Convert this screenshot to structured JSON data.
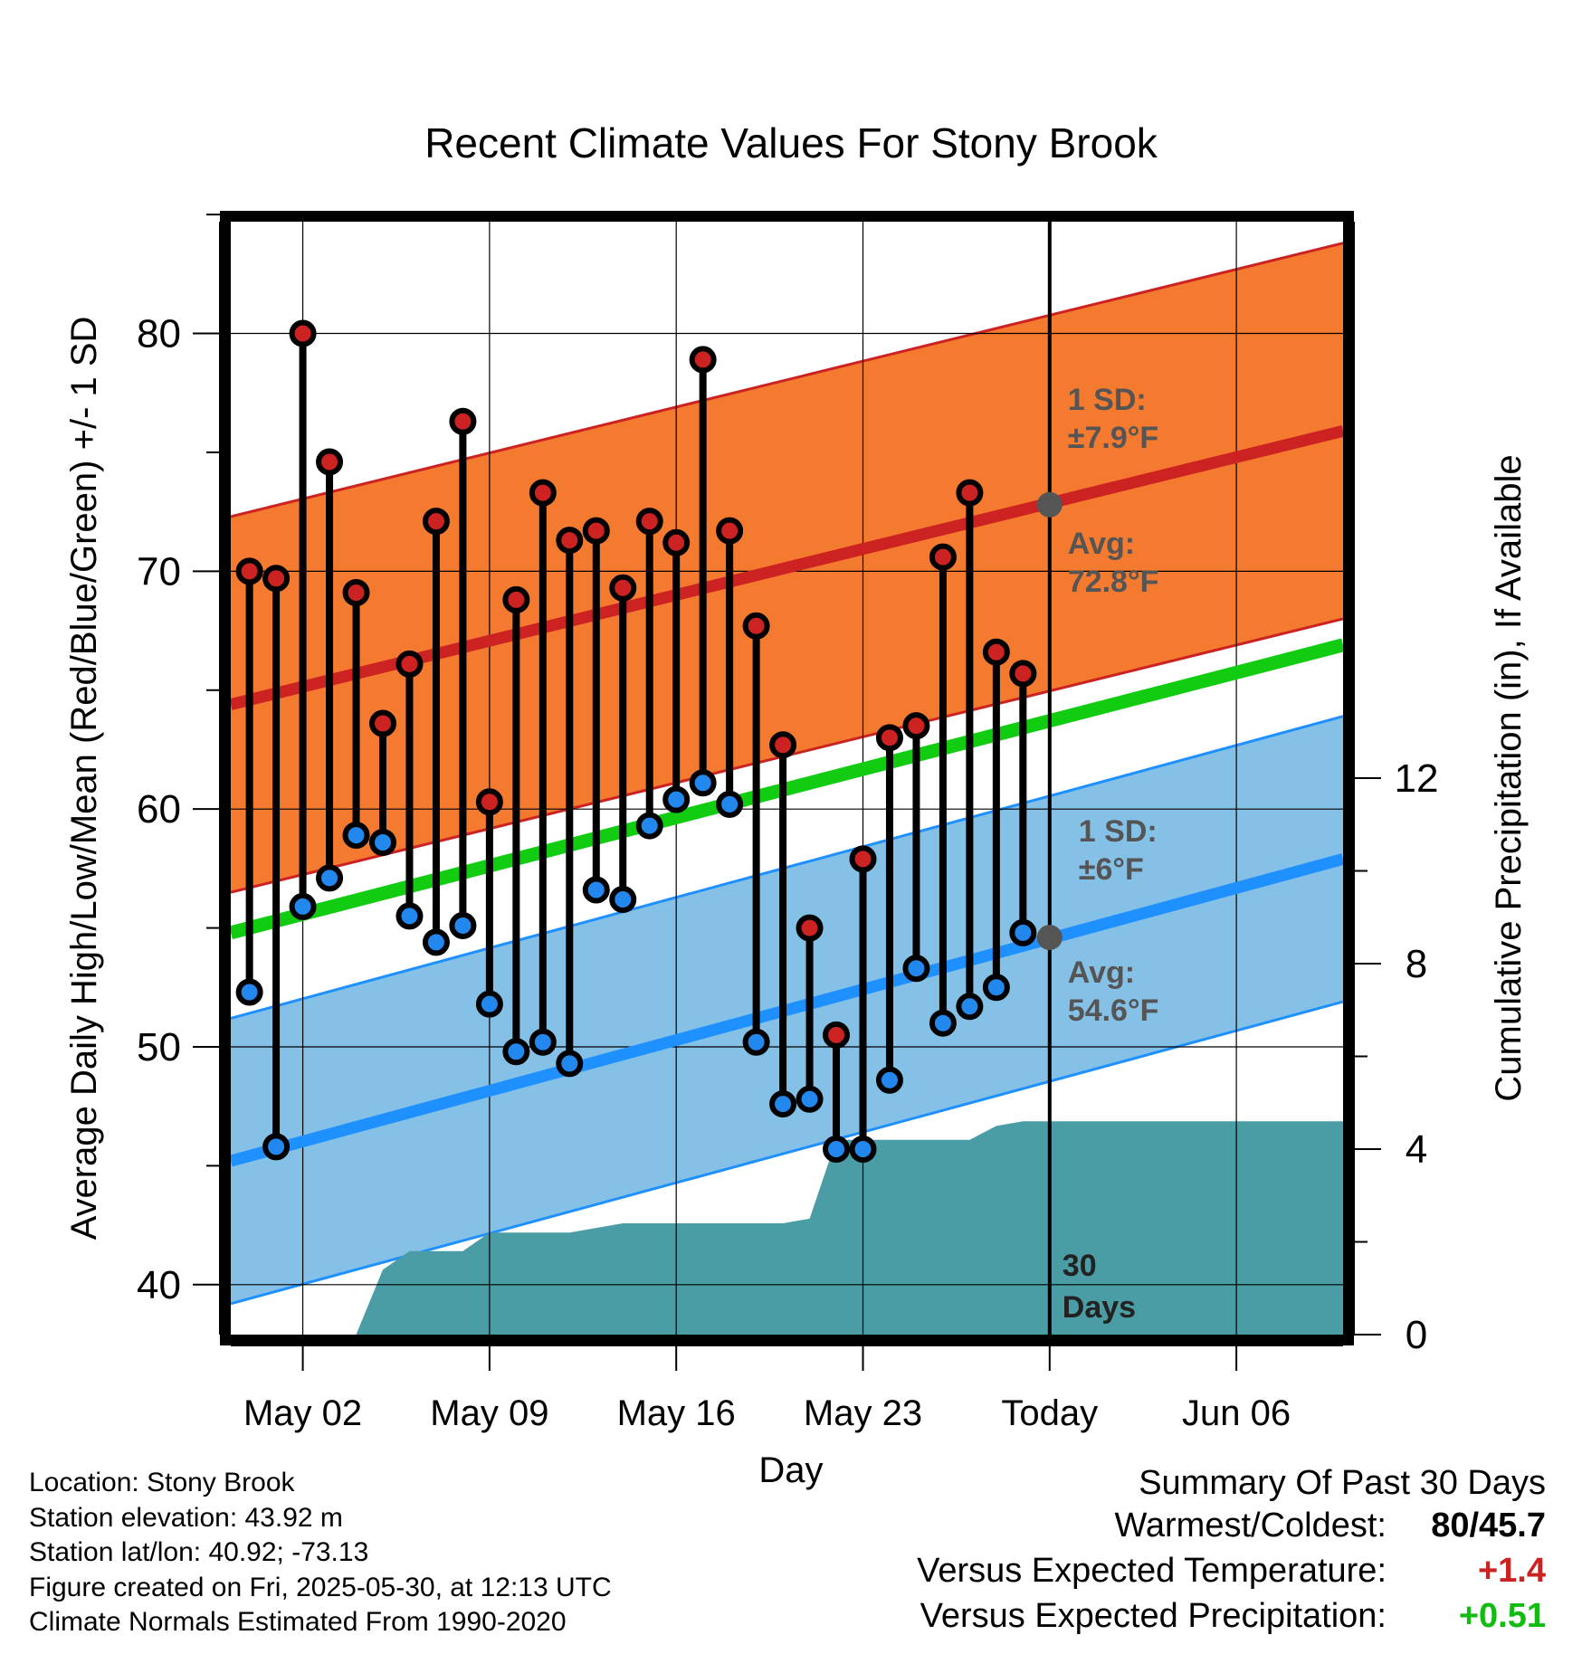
{
  "chart_data": {
    "type": "line",
    "title": "Recent Climate Values For Stony Brook",
    "xlabel": "Day",
    "ylabel": "Average Daily High/Low/Mean (Red/Blue/Green) +/- 1 SD",
    "y2label": "Cumulative Precipitation (in), If Available",
    "x_day_range": [
      -0.7,
      41
    ],
    "ylim": [
      37.9,
      84.7
    ],
    "y2lim": [
      0,
      24
    ],
    "yticks": [
      "40",
      "50",
      "60",
      "70",
      "80"
    ],
    "y2ticks": [
      "0",
      "4",
      "8",
      "12"
    ],
    "xticks": [
      {
        "day": 2,
        "label": "May 02"
      },
      {
        "day": 9,
        "label": "May 09"
      },
      {
        "day": 16,
        "label": "May 16"
      },
      {
        "day": 23,
        "label": "May 23"
      },
      {
        "day": 30,
        "label": "Today"
      },
      {
        "day": 37,
        "label": "Jun 06"
      }
    ],
    "today_day": 30,
    "grid": true,
    "series": [
      {
        "name": "High",
        "color": "#cc2222",
        "x": [
          0,
          1,
          2,
          3,
          4,
          5,
          6,
          7,
          8,
          9,
          10,
          11,
          12,
          13,
          14,
          15,
          16,
          17,
          18,
          19,
          20,
          21,
          22,
          23,
          24,
          25,
          26,
          27,
          28,
          29
        ],
        "values": [
          70.0,
          69.7,
          80.0,
          74.6,
          69.1,
          63.6,
          66.1,
          72.1,
          76.3,
          60.3,
          68.8,
          73.3,
          71.3,
          71.7,
          69.3,
          72.1,
          71.2,
          78.9,
          71.7,
          67.7,
          62.7,
          55.0,
          50.5,
          57.9,
          63.0,
          63.5,
          70.6,
          73.3,
          66.6,
          65.7
        ]
      },
      {
        "name": "Low",
        "color": "#2288ee",
        "x": [
          0,
          1,
          2,
          3,
          4,
          5,
          6,
          7,
          8,
          9,
          10,
          11,
          12,
          13,
          14,
          15,
          16,
          17,
          18,
          19,
          20,
          21,
          22,
          23,
          24,
          25,
          26,
          27,
          28,
          29
        ],
        "values": [
          52.3,
          45.8,
          55.9,
          57.1,
          58.9,
          58.6,
          55.5,
          54.4,
          55.1,
          51.8,
          49.8,
          50.2,
          49.3,
          56.6,
          56.2,
          59.3,
          60.4,
          61.1,
          60.2,
          50.2,
          47.6,
          47.8,
          45.7,
          45.7,
          48.6,
          53.3,
          51.0,
          51.7,
          52.5,
          54.8
        ]
      }
    ],
    "normal_high": {
      "start": 64.4,
      "end": 75.9,
      "sd": 7.9,
      "color": "#cc2222",
      "band_color": "#f47a30"
    },
    "normal_low": {
      "start": 45.2,
      "end": 57.9,
      "sd": 6.0,
      "color": "#1e90ff",
      "band_color": "#85c1e6"
    },
    "normal_mean": {
      "start": 54.8,
      "end": 66.9,
      "color": "#11cc11"
    },
    "precip": {
      "color": "#4a9da5",
      "x": [
        4,
        5,
        6,
        8,
        9,
        10,
        12,
        13,
        14,
        19,
        20,
        21,
        22,
        27,
        28,
        29,
        41
      ],
      "values": [
        0,
        1.4,
        1.8,
        1.8,
        2.2,
        2.2,
        2.2,
        2.3,
        2.4,
        2.4,
        2.4,
        2.5,
        4.2,
        4.2,
        4.5,
        4.6,
        4.6
      ]
    },
    "annotations": {
      "high_sd_label": "1 SD:",
      "high_sd_value": "±7.9°F",
      "high_avg_label": "Avg:",
      "high_avg_value": "72.8°F",
      "high_avg": 72.8,
      "low_sd_label": "1 SD:",
      "low_sd_value": "±6°F",
      "low_avg_label": "Avg:",
      "low_avg_value": "54.6°F",
      "low_avg": 54.6,
      "days_label_1": "30",
      "days_label_2": "Days"
    }
  },
  "footer": {
    "location": "Location: Stony Brook",
    "elevation": "Station elevation: 43.92 m",
    "latlon": "Station lat/lon: 40.92; -73.13",
    "created": "Figure created on Fri, 2025-05-30, at 12:13 UTC",
    "normals": "Climate Normals Estimated From 1990-2020"
  },
  "summary": {
    "title": "Summary Of Past 30 Days",
    "warm_cold_label": "Warmest/Coldest:",
    "warm_value": "80",
    "cold_value": "/45.7",
    "temp_label": "Versus Expected Temperature:",
    "temp_value": "+1.4",
    "temp_color": "#cc2222",
    "precip_label": "Versus Expected Precipitation:",
    "precip_value": "+0.51",
    "precip_color": "#11bb11"
  }
}
